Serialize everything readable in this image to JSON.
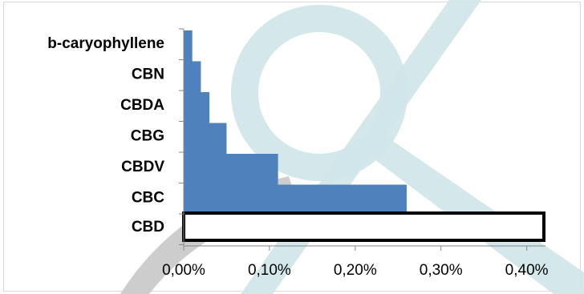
{
  "chart_data": {
    "type": "bar",
    "orientation": "horizontal",
    "categories": [
      "b-caryophyllene",
      "CBN",
      "CBDA",
      "CBG",
      "CBDV",
      "CBC",
      "CBD"
    ],
    "values": [
      0.0001,
      0.0002,
      0.0003,
      0.0005,
      0.0011,
      0.0026,
      0.0042
    ],
    "xlim": [
      0,
      0.0042
    ],
    "x_ticks": [
      "0,00%",
      "0,10%",
      "0,20%",
      "0,30%",
      "0,40%"
    ],
    "x_tick_values": [
      0,
      0.001,
      0.002,
      0.003,
      0.004
    ],
    "title": "",
    "xlabel": "",
    "ylabel": "",
    "grid": false,
    "legend": "none",
    "colors": {
      "bar_fill": "#4f81bd",
      "highlight_fill": "#ffffff",
      "highlight_stroke": "#000000",
      "axis": "#868686",
      "watermark": "#cfe6ea",
      "watermark_gray": "#c8c8c8"
    },
    "highlight_category": "CBD"
  }
}
